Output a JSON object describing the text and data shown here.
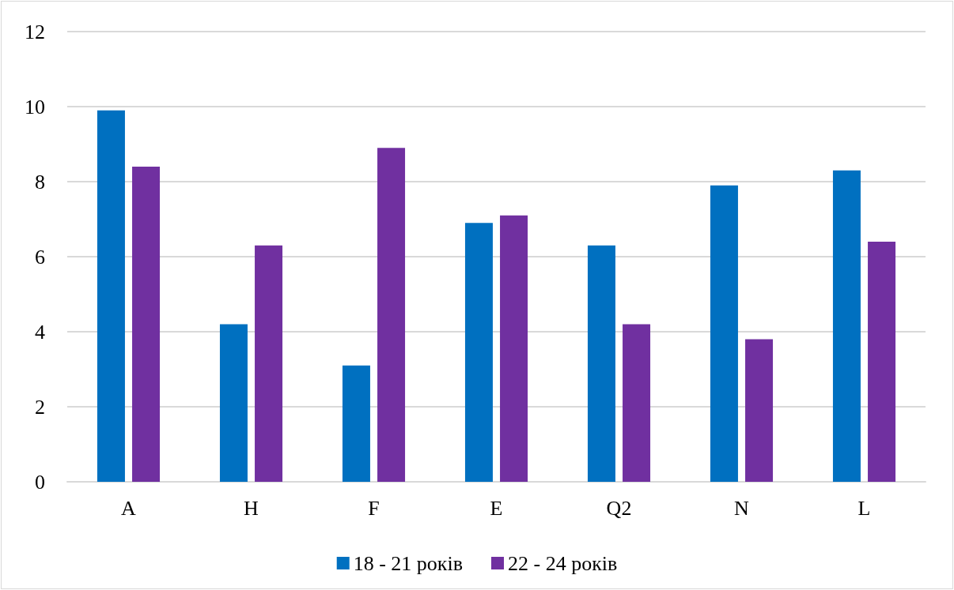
{
  "chart_data": {
    "type": "bar",
    "categories": [
      "A",
      "H",
      "F",
      "E",
      "Q2",
      "N",
      "L"
    ],
    "series": [
      {
        "name": "18 - 21 років",
        "color": "#0070c0",
        "values": [
          9.9,
          4.2,
          3.1,
          6.9,
          6.3,
          7.9,
          8.3
        ]
      },
      {
        "name": "22 - 24 років",
        "color": "#7030a0",
        "values": [
          8.4,
          6.3,
          8.9,
          7.1,
          4.2,
          3.8,
          6.4
        ]
      }
    ],
    "ylim": [
      0,
      12
    ],
    "yticks": [
      0,
      2,
      4,
      6,
      8,
      10,
      12
    ],
    "grid": "y",
    "legend": "bottom"
  }
}
